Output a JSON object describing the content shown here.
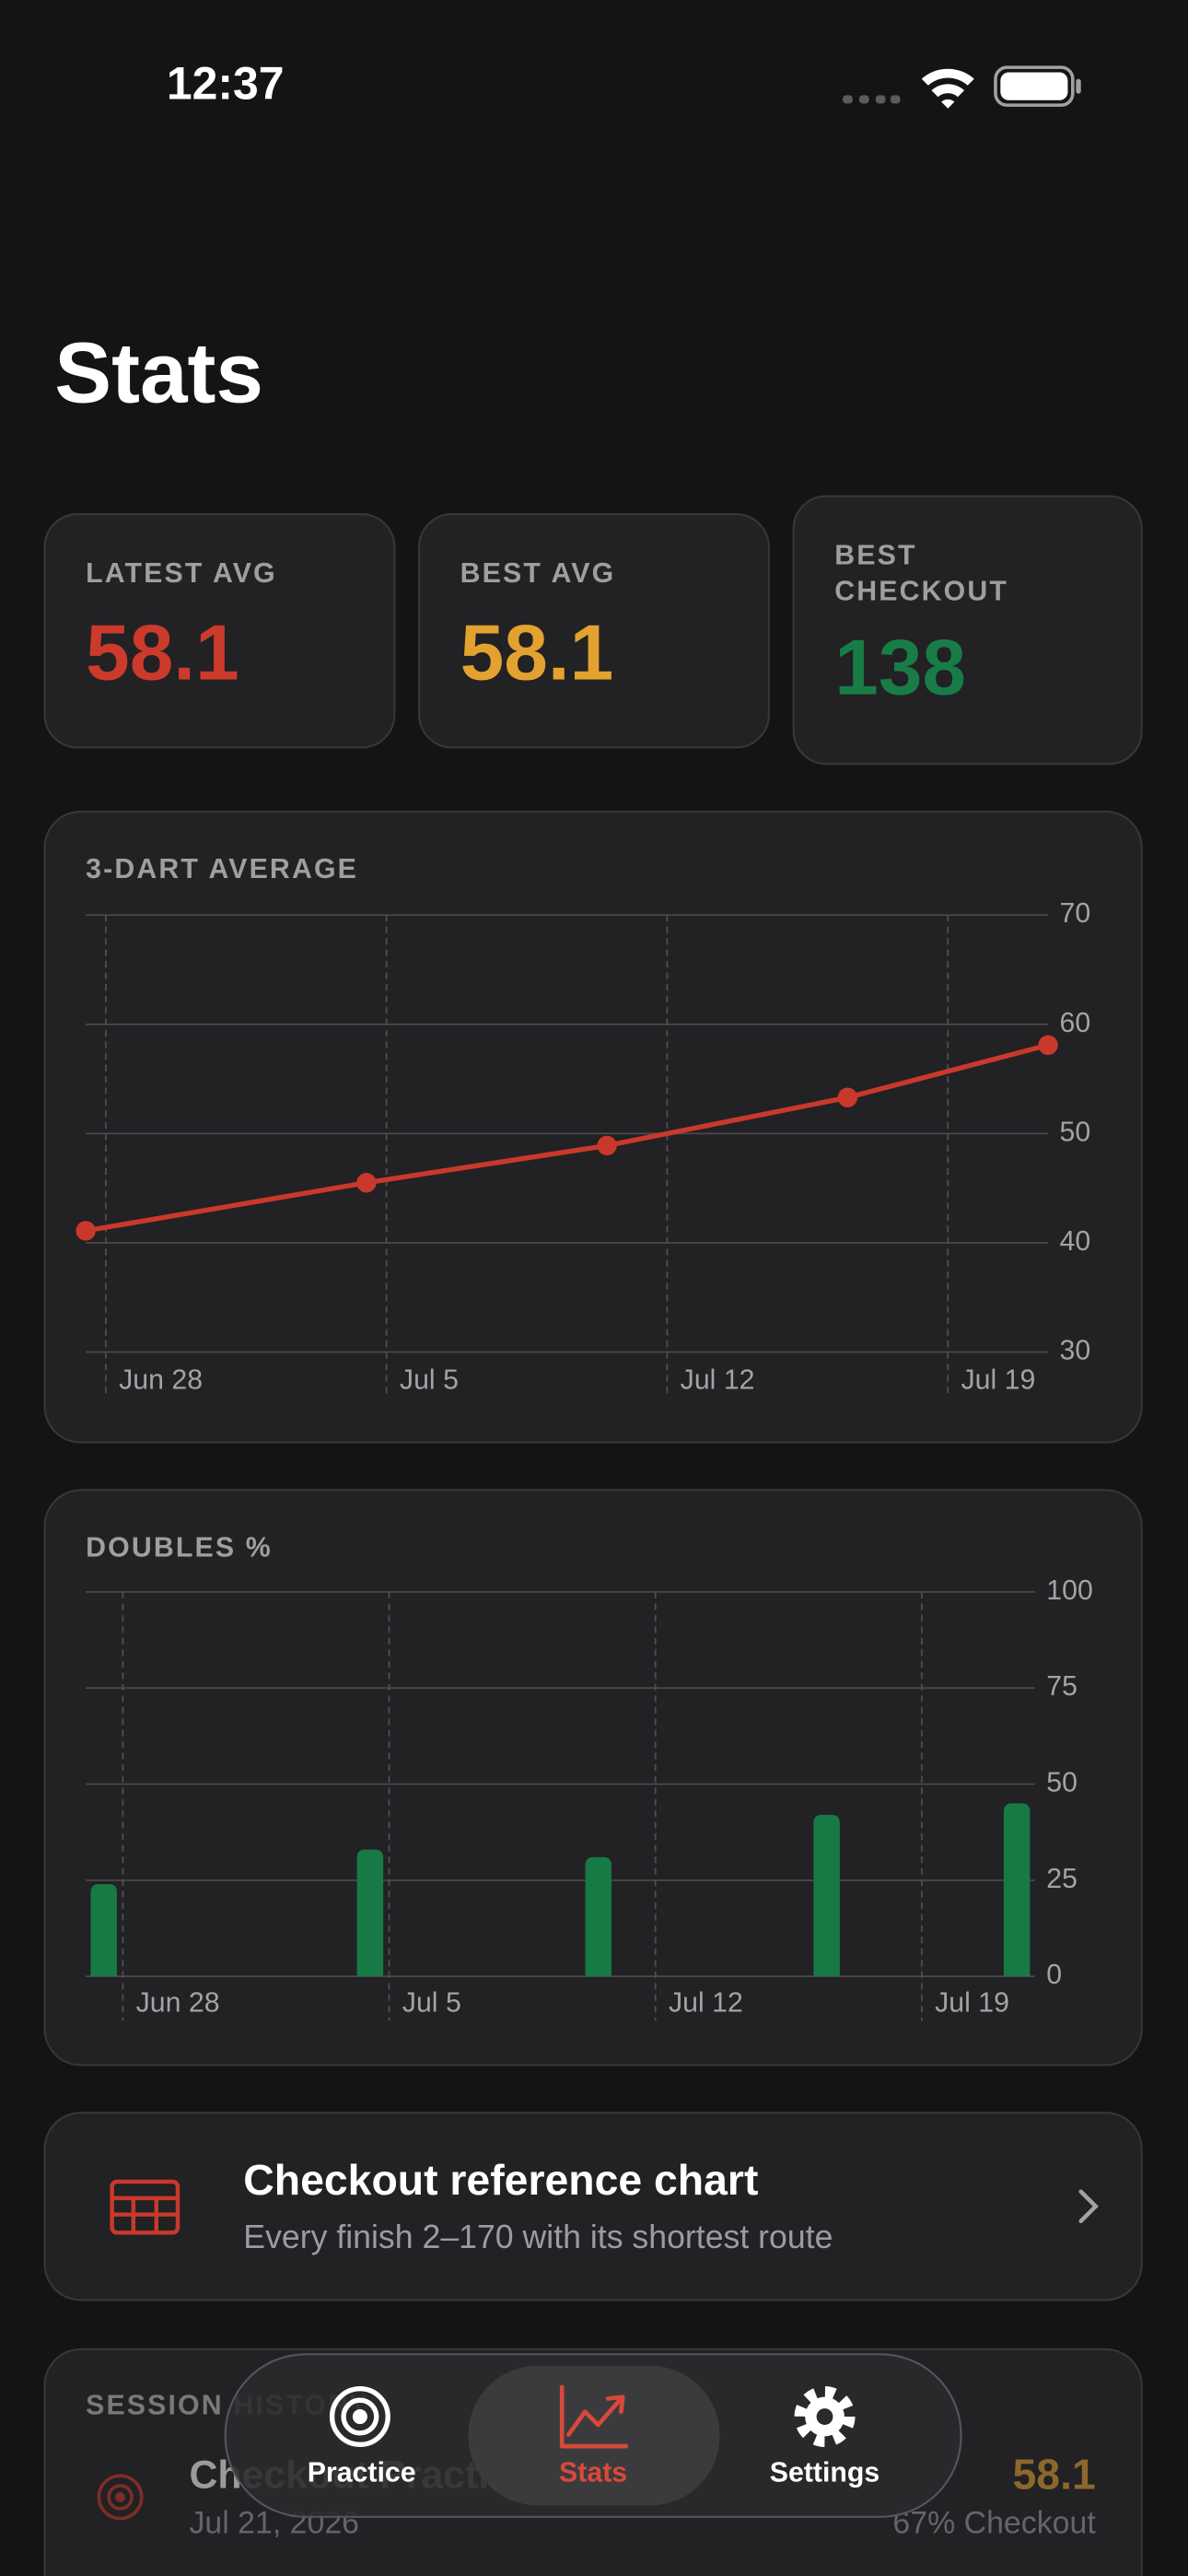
{
  "status_bar": {
    "time": "12:37"
  },
  "header": {
    "title": "Stats"
  },
  "stat_cards": [
    {
      "label": "LATEST AVG",
      "value": 58.1,
      "color": "#cc3a2c"
    },
    {
      "label": "BEST AVG",
      "value": 58.1,
      "color": "#e3a230"
    },
    {
      "label": "BEST CHECKOUT",
      "value": 138,
      "color": "#187c47"
    }
  ],
  "chart_data": [
    {
      "type": "line",
      "title": "3-DART AVERAGE",
      "x": [
        "Jun 27",
        "Jul 4",
        "Jul 10",
        "Jul 16",
        "Jul 21"
      ],
      "values": [
        41.1,
        45.5,
        48.9,
        53.3,
        58.1
      ],
      "color": "#c9392b",
      "ylim": [
        30,
        70
      ],
      "yticks": [
        30,
        40,
        50,
        60,
        70
      ],
      "xticks": [
        "Jun 28",
        "Jul 5",
        "Jul 12",
        "Jul 19"
      ],
      "grid": true
    },
    {
      "type": "bar",
      "title": "DOUBLES %",
      "x": [
        "Jun 27",
        "Jul 4",
        "Jul 10",
        "Jul 16",
        "Jul 21"
      ],
      "values": [
        24,
        33,
        31,
        42,
        45
      ],
      "color": "#177a45",
      "ylim": [
        0,
        100
      ],
      "yticks": [
        0,
        25,
        50,
        75,
        100
      ],
      "xticks": [
        "Jun 28",
        "Jul 5",
        "Jul 12",
        "Jul 19"
      ],
      "grid": true
    }
  ],
  "reference_link": {
    "title": "Checkout reference chart",
    "subtitle": "Every finish 2–170 with its shortest route"
  },
  "sessions": {
    "heading": "SESSION HISTORY",
    "items": [
      {
        "name": "Checkout Practice",
        "date": "Jul 21, 2026",
        "average": "58.1",
        "detail": "67% Checkout"
      }
    ]
  },
  "tab_bar": {
    "tabs": [
      {
        "label": "Practice"
      },
      {
        "label": "Stats",
        "selected": true
      },
      {
        "label": "Settings"
      }
    ]
  }
}
